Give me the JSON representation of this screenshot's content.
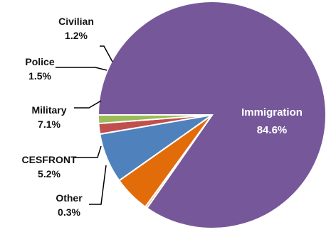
{
  "top_link_text": "",
  "chart_data": {
    "type": "pie",
    "title": "",
    "start_angle_deg": 180,
    "direction": "counterclockwise",
    "slices": [
      {
        "label": "Immigration",
        "value": 84.6,
        "value_label": "84.6%",
        "color": "#76589a",
        "label_inside": true
      },
      {
        "label": "Other",
        "value": 0.3,
        "value_label": "0.3%",
        "color": "#f2a060",
        "label_inside": false
      },
      {
        "label": "CESFRONT",
        "value": 5.2,
        "value_label": "5.2%",
        "color": "#e36c0a",
        "label_inside": false
      },
      {
        "label": "Military",
        "value": 7.1,
        "value_label": "7.1%",
        "color": "#4f81bd",
        "label_inside": false
      },
      {
        "label": "Police",
        "value": 1.5,
        "value_label": "1.5%",
        "color": "#c0504d",
        "label_inside": false
      },
      {
        "label": "Civilian",
        "value": 1.2,
        "value_label": "1.2%",
        "color": "#9bbb59",
        "label_inside": false
      }
    ]
  }
}
